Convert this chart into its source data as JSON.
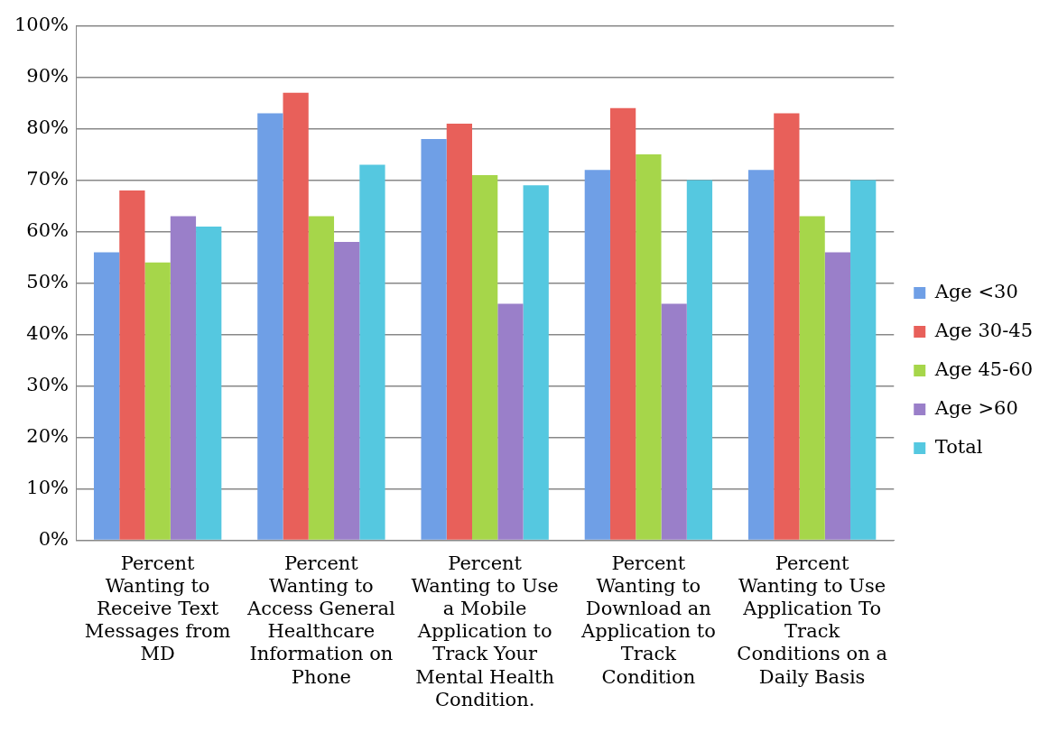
{
  "chart_data": {
    "type": "bar",
    "categories": [
      "Percent Wanting to Receive Text Messages from MD",
      "Percent Wanting to Access General Healthcare Information on Phone",
      "Percent Wanting to Use a Mobile Application to Track Your Mental Health Condition.",
      "Percent Wanting to Download an Application to Track Condition",
      "Percent Wanting to Use Application To Track Conditions on a Daily Basis"
    ],
    "series": [
      {
        "name": "Age <30",
        "color": "#6f9fe6",
        "values": [
          56,
          83,
          78,
          72,
          72
        ]
      },
      {
        "name": "Age 30-45",
        "color": "#e8605a",
        "values": [
          68,
          87,
          81,
          84,
          83
        ]
      },
      {
        "name": "Age 45-60",
        "color": "#a6d64a",
        "values": [
          54,
          63,
          71,
          75,
          63
        ]
      },
      {
        "name": "Age >60",
        "color": "#9a7fc9",
        "values": [
          63,
          58,
          46,
          46,
          56
        ]
      },
      {
        "name": "Total",
        "color": "#55c8e0",
        "values": [
          61,
          73,
          69,
          70,
          70
        ]
      }
    ],
    "ylim": [
      0,
      100
    ],
    "yticks": [
      {
        "value": 0,
        "label": "0%"
      },
      {
        "value": 10,
        "label": "10%"
      },
      {
        "value": 20,
        "label": "20%"
      },
      {
        "value": 30,
        "label": "30%"
      },
      {
        "value": 40,
        "label": "40%"
      },
      {
        "value": 50,
        "label": "50%"
      },
      {
        "value": 60,
        "label": "60%"
      },
      {
        "value": 70,
        "label": "70%"
      },
      {
        "value": 80,
        "label": "80%"
      },
      {
        "value": 90,
        "label": "90%"
      },
      {
        "value": 100,
        "label": "100%"
      }
    ],
    "grid": "y",
    "legend": "right"
  }
}
